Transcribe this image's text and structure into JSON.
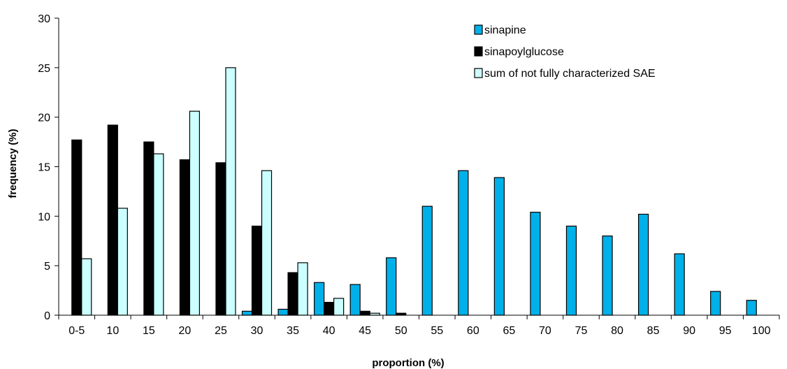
{
  "chart_data": {
    "type": "bar",
    "xlabel": "proportion (%)",
    "ylabel": "frequency (%)",
    "ylim": [
      0,
      30
    ],
    "yticks": [
      0,
      5,
      10,
      15,
      20,
      25,
      30
    ],
    "grid": false,
    "legend_position": "top-right",
    "categories": [
      "0-5",
      "10",
      "15",
      "20",
      "25",
      "30",
      "35",
      "40",
      "45",
      "50",
      "55",
      "60",
      "65",
      "70",
      "75",
      "80",
      "85",
      "90",
      "95",
      "100"
    ],
    "series": [
      {
        "name": "sinapine",
        "color": "#00b0e8",
        "values": [
          0,
          0,
          0,
          0,
          0,
          0.4,
          0.6,
          3.3,
          3.1,
          5.8,
          11.0,
          14.6,
          13.9,
          10.4,
          9.0,
          8.0,
          10.2,
          6.2,
          2.4,
          1.5
        ]
      },
      {
        "name": "sinapoylglucose",
        "color": "#000000",
        "values": [
          17.7,
          19.2,
          17.5,
          15.7,
          15.4,
          9.0,
          4.3,
          1.3,
          0.4,
          0.2,
          0,
          0,
          0,
          0,
          0,
          0,
          0,
          0,
          0,
          0
        ]
      },
      {
        "name": "sum of not fully characterized SAE",
        "color": "#ccffff",
        "values": [
          5.7,
          10.8,
          16.3,
          20.6,
          25.0,
          14.6,
          5.3,
          1.7,
          0.2,
          0,
          0,
          0,
          0,
          0,
          0,
          0,
          0,
          0,
          0,
          0
        ]
      }
    ]
  }
}
